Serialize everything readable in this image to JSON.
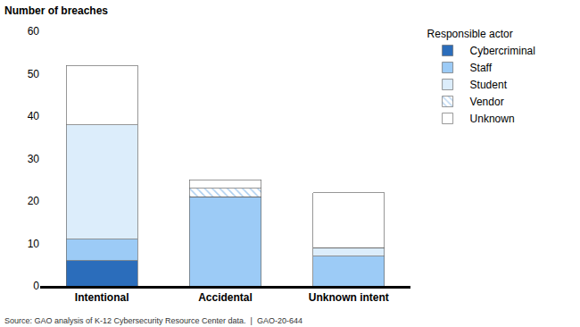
{
  "chart_data": {
    "type": "bar",
    "stacked": true,
    "y_label": "Number of breaches",
    "legend_title": "Responsible actor",
    "legend": "right",
    "source": "Source: GAO analysis of K-12 Cybersecurity Resource Center data.  |  GAO-20-644",
    "categories": [
      "Intentional",
      "Accidental",
      "Unknown intent"
    ],
    "series": [
      {
        "name": "Cybercriminal",
        "color": "#2b6dbb",
        "values": [
          6,
          0,
          0
        ]
      },
      {
        "name": "Staff",
        "color": "#9ccbf6",
        "values": [
          5,
          21,
          7
        ]
      },
      {
        "name": "Student",
        "color": "#dcedfb",
        "values": [
          27,
          0,
          2
        ]
      },
      {
        "name": "Vendor",
        "color": "#a9cdf0",
        "marker": "hatch",
        "values": [
          0,
          2,
          0
        ]
      },
      {
        "name": "Unknown",
        "color": "#ffffff",
        "values": [
          14,
          2,
          13
        ]
      }
    ],
    "ylim": [
      0,
      60
    ],
    "yticks": [
      0,
      10,
      20,
      30,
      40,
      50,
      60
    ],
    "grid": false
  }
}
